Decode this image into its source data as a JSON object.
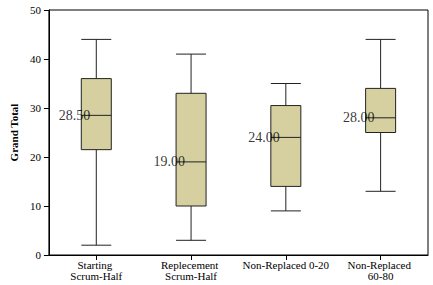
{
  "chart_data": {
    "type": "boxplot",
    "y_label": "Grand Total",
    "categories": [
      "Starting Scrum-Half",
      "Replecement Scrum-Half",
      "Non-Replaced 0-20",
      "Non-Replaced 60-80"
    ],
    "min": [
      2,
      3,
      9,
      13
    ],
    "q1": [
      21.5,
      10,
      14,
      25
    ],
    "median": [
      28.5,
      19,
      24,
      28
    ],
    "q3": [
      36,
      33,
      30.5,
      34
    ],
    "max": [
      44,
      41,
      35,
      44
    ],
    "median_labels": [
      "28.50",
      "19.00",
      "24.00",
      "28.00"
    ],
    "data_labels": true,
    "color": "#d6d0a0",
    "ylim": [
      0,
      50
    ],
    "yticks": [
      0,
      10,
      20,
      30,
      40,
      50
    ],
    "grid": false
  }
}
